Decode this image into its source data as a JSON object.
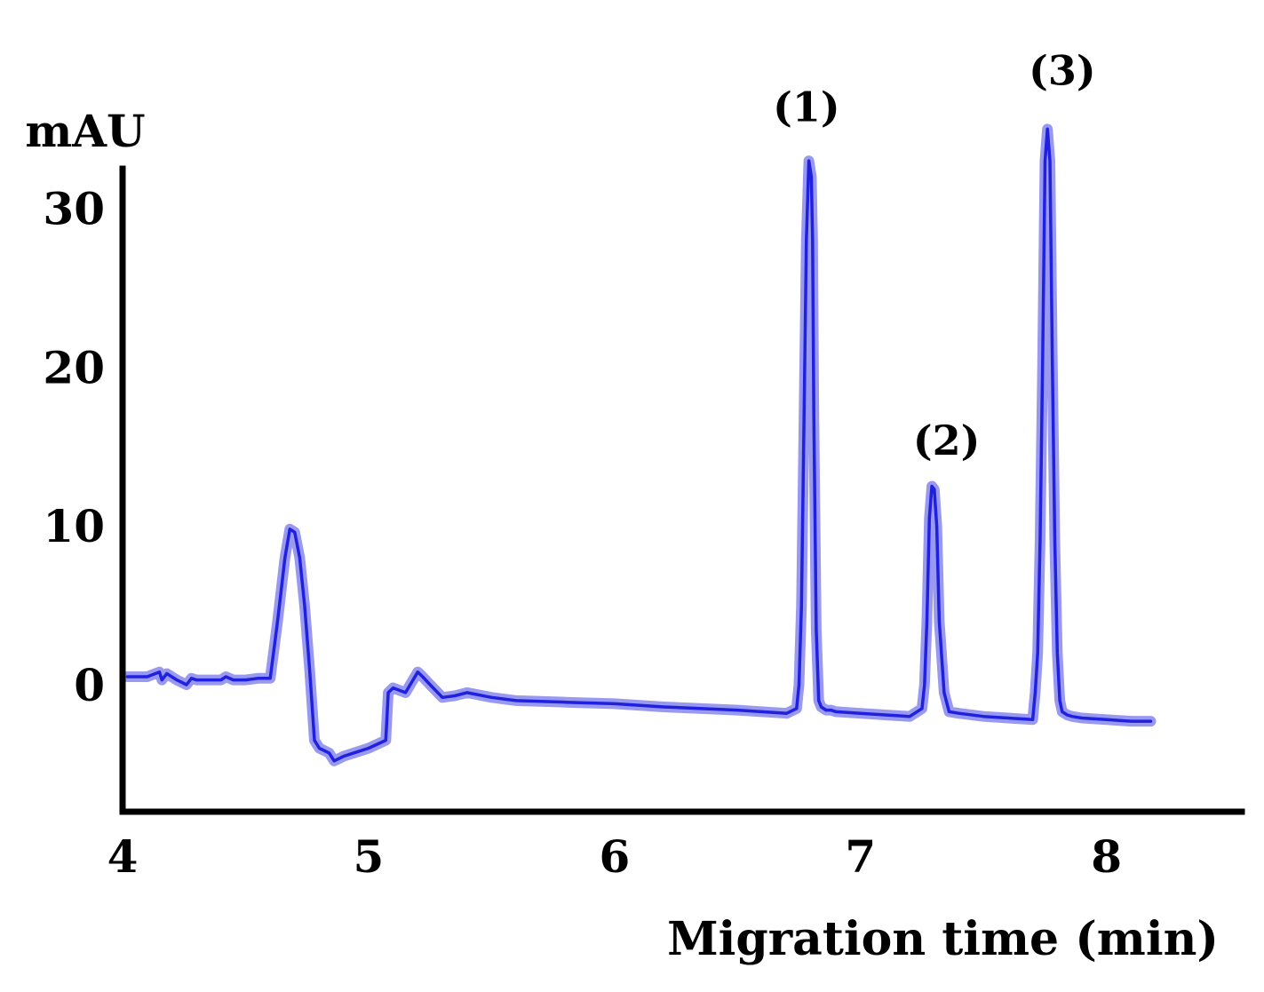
{
  "chart_data": {
    "type": "line",
    "title": "",
    "xlabel": "Migration time (min)",
    "ylabel": "mAU",
    "xlim": [
      4,
      8.55
    ],
    "ylim": [
      -8,
      32.5
    ],
    "x_ticks": [
      4,
      5,
      6,
      7,
      8
    ],
    "x_tick_labels": [
      "4",
      "5",
      "6",
      "7",
      "8"
    ],
    "y_ticks": [
      0,
      10,
      20,
      30
    ],
    "y_tick_labels": [
      "0",
      "10",
      "20",
      "30"
    ],
    "grid": false,
    "legend": "none",
    "line_color": "#2020e0",
    "halo_color": "#9999f0",
    "series": [
      {
        "x": [
          4.02,
          4.1,
          4.15,
          4.16,
          4.18,
          4.22,
          4.26,
          4.28,
          4.3,
          4.4,
          4.42,
          4.45,
          4.5,
          4.55,
          4.6,
          4.63,
          4.66,
          4.68,
          4.7,
          4.72,
          4.74,
          4.76,
          4.78,
          4.8,
          4.84,
          4.86,
          4.9,
          5.0,
          5.07,
          5.08,
          5.1,
          5.15,
          5.2,
          5.22,
          5.25,
          5.3,
          5.35,
          5.4,
          5.5,
          5.6,
          5.8,
          6.0,
          6.2,
          6.5,
          6.7,
          6.74,
          6.75,
          6.76,
          6.77,
          6.78,
          6.79,
          6.8,
          6.805,
          6.81,
          6.82,
          6.83,
          6.84,
          6.86,
          6.88,
          6.9,
          7.0,
          7.1,
          7.2,
          7.25,
          7.26,
          7.27,
          7.28,
          7.29,
          7.3,
          7.31,
          7.32,
          7.34,
          7.36,
          7.4,
          7.5,
          7.6,
          7.7,
          7.71,
          7.72,
          7.73,
          7.74,
          7.75,
          7.76,
          7.77,
          7.78,
          7.79,
          7.8,
          7.81,
          7.82,
          7.84,
          7.86,
          7.9,
          8.0,
          8.1,
          8.18
        ],
        "y": [
          0.5,
          0.5,
          0.8,
          0.3,
          0.7,
          0.3,
          0.0,
          0.4,
          0.3,
          0.3,
          0.5,
          0.3,
          0.3,
          0.4,
          0.4,
          4.0,
          8.0,
          9.8,
          9.6,
          8.0,
          5.0,
          1.0,
          -3.5,
          -4.0,
          -4.3,
          -4.8,
          -4.5,
          -4.0,
          -3.5,
          -0.5,
          -0.2,
          -0.5,
          0.8,
          0.5,
          0.0,
          -0.8,
          -0.7,
          -0.5,
          -0.8,
          -1.0,
          -1.1,
          -1.2,
          -1.4,
          -1.6,
          -1.8,
          -1.5,
          0.0,
          5.0,
          16.5,
          28.0,
          33.0,
          32.0,
          28.0,
          17.0,
          3.5,
          -1.0,
          -1.4,
          -1.6,
          -1.6,
          -1.7,
          -1.8,
          -1.9,
          -2.0,
          -1.5,
          0.0,
          4.0,
          10.5,
          12.5,
          12.3,
          10.0,
          4.0,
          -0.5,
          -1.7,
          -1.8,
          -2.0,
          -2.1,
          -2.2,
          -0.5,
          2.0,
          9.0,
          20.0,
          33.0,
          35.0,
          33.0,
          20.0,
          9.0,
          2.0,
          -1.0,
          -1.7,
          -1.9,
          -2.0,
          -2.1,
          -2.2,
          -2.3,
          -2.3
        ]
      }
    ],
    "annotations": [
      {
        "text": "(1)",
        "x": 6.78,
        "y": 35.5
      },
      {
        "text": "(2)",
        "x": 7.35,
        "y": 14.5
      },
      {
        "text": "(3)",
        "x": 7.82,
        "y": 37.8
      }
    ]
  }
}
